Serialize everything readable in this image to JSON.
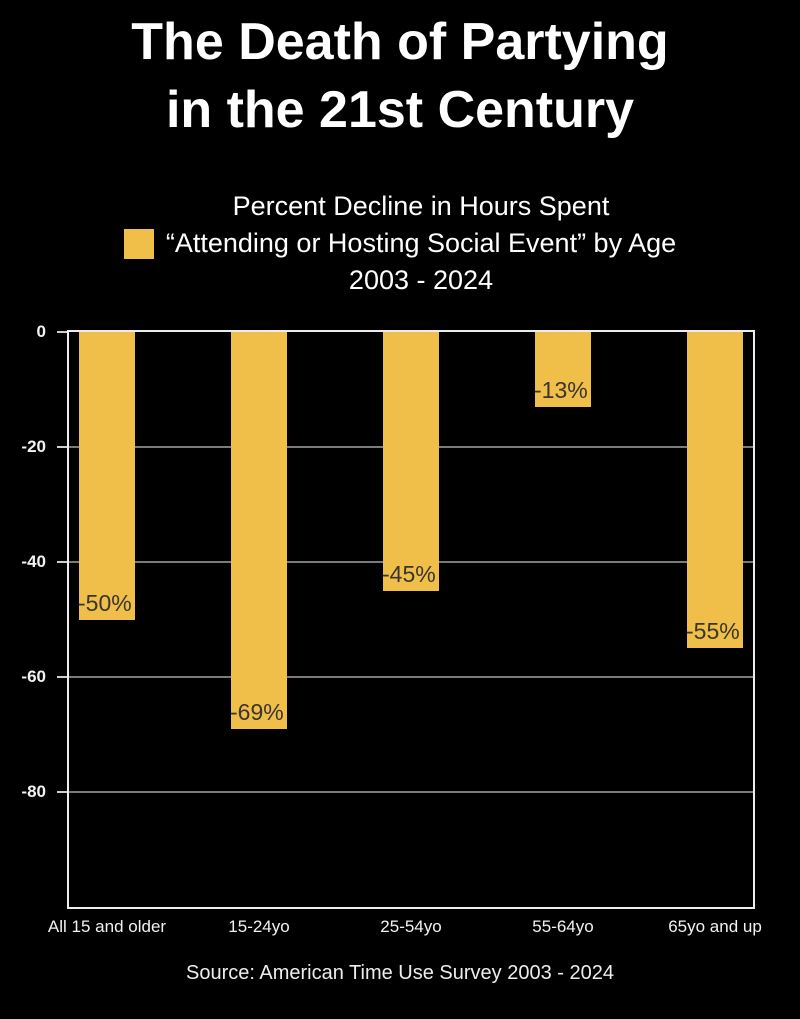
{
  "title": {
    "line1": "The Death of Partying",
    "line2": "in the 21st Century"
  },
  "legend": {
    "swatch_color": "#EFBF4A",
    "lines": [
      "Percent Decline in Hours Spent",
      "“Attending or Hosting Social Event” by Age",
      "2003 - 2024"
    ]
  },
  "chart_data": {
    "type": "bar",
    "title": "Percent Decline in Hours Spent “Attending or Hosting Social Event” by Age 2003 - 2024",
    "categories": [
      "All 15 and older",
      "15-24yo",
      "25-54yo",
      "55-64yo",
      "65yo and up"
    ],
    "values": [
      -50,
      -69,
      -45,
      -13,
      -55
    ],
    "bar_labels": [
      "-50%",
      "-69%",
      "-45%",
      "-13%",
      "-55%"
    ],
    "xlabel": "",
    "ylabel": "",
    "ylim": [
      -100,
      0
    ],
    "yticks": [
      0,
      -20,
      -40,
      -60,
      -80
    ],
    "grid": true,
    "legend_position": "top",
    "bar_color": "#EFBF4A",
    "background_color": "#000000",
    "value_label_color": "#3b352a"
  },
  "source": {
    "text": "Source: American Time Use Survey 2003 - 2024"
  }
}
